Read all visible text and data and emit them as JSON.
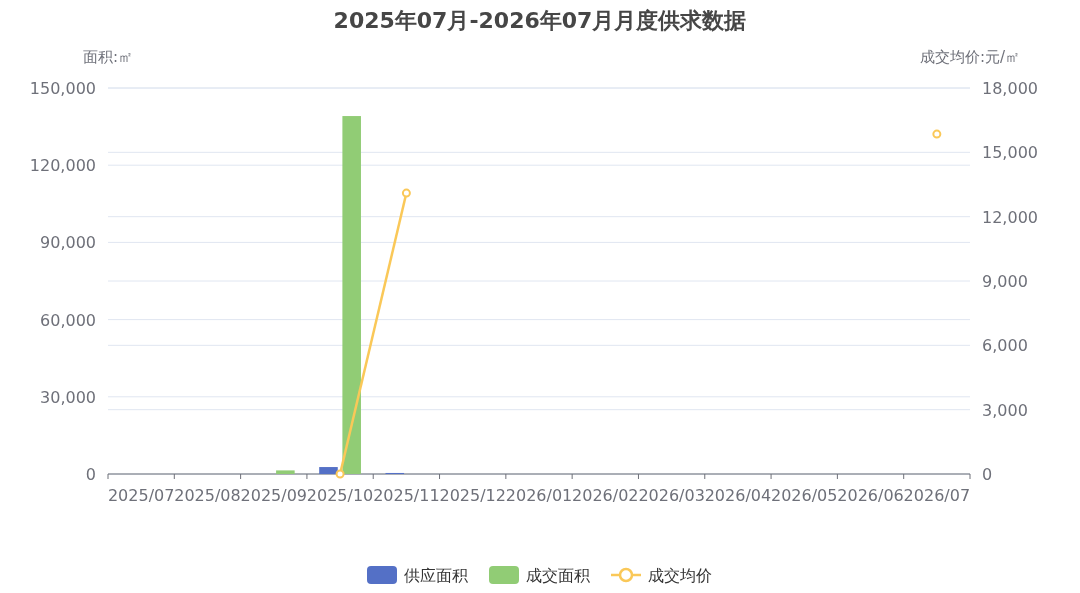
{
  "chart_data": {
    "type": "bar",
    "title": "2025年07月-2026年07月月度供求数据",
    "ylabel": "面积:㎡",
    "y2label": "成交均价:元/㎡",
    "categories": [
      "2025/07",
      "2025/08",
      "2025/09",
      "2025/10",
      "2025/11",
      "2025/12",
      "2026/01",
      "2026/02",
      "2026/03",
      "2026/04",
      "2026/05",
      "2026/06",
      "2026/07"
    ],
    "series": [
      {
        "name": "供应面积",
        "color": "#5470c6",
        "values": [
          null,
          null,
          null,
          2700,
          400,
          null,
          null,
          null,
          null,
          null,
          null,
          null,
          null
        ]
      },
      {
        "name": "成交面积",
        "color": "#91cc75",
        "values": [
          null,
          null,
          1400,
          139100,
          null,
          null,
          null,
          null,
          null,
          null,
          null,
          null,
          null
        ]
      },
      {
        "name": "成交均价",
        "type": "line",
        "axis": "y2",
        "color": "#fac858",
        "values": [
          null,
          null,
          null,
          0,
          13100,
          null,
          null,
          null,
          null,
          null,
          null,
          null,
          15850
        ]
      }
    ],
    "ylim": [
      0,
      150000
    ],
    "yticks": [
      0,
      {
        "value": 30000,
        "label": "30,000"
      },
      {
        "value": 60000,
        "label": "60,000"
      },
      {
        "value": 90000,
        "label": "90,000"
      },
      {
        "value": 120000,
        "label": "120,000"
      },
      {
        "value": 150000,
        "label": "150,000"
      }
    ],
    "y2lim": [
      0,
      18000
    ],
    "y2ticks": [
      0,
      {
        "value": 3000,
        "label": "3,000"
      },
      {
        "value": 6000,
        "label": "6,000"
      },
      {
        "value": 9000,
        "label": "9,000"
      },
      {
        "value": 12000,
        "label": "12,000"
      },
      {
        "value": 15000,
        "label": "15,000"
      },
      {
        "value": 18000,
        "label": "18,000"
      }
    ],
    "grid": true,
    "legend": "bottom",
    "marker": "circle"
  }
}
